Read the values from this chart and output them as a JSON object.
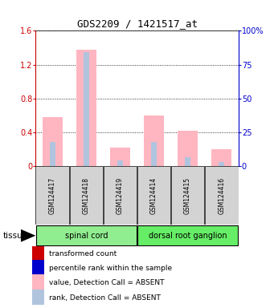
{
  "title": "GDS2209 / 1421517_at",
  "samples": [
    "GSM124417",
    "GSM124418",
    "GSM124419",
    "GSM124414",
    "GSM124415",
    "GSM124416"
  ],
  "absent_value": [
    0.58,
    1.38,
    0.22,
    0.6,
    0.42,
    0.2
  ],
  "absent_rank_pct": [
    18.0,
    84.0,
    4.5,
    18.0,
    6.5,
    3.0
  ],
  "ylim_left": [
    0,
    1.6
  ],
  "ylim_right": [
    0,
    100
  ],
  "yticks_left": [
    0,
    0.4,
    0.8,
    1.2,
    1.6
  ],
  "ytick_labels_left": [
    "0",
    "0.4",
    "0.8",
    "1.2",
    "1.6"
  ],
  "yticks_right": [
    0,
    25,
    50,
    75,
    100
  ],
  "ytick_labels_right": [
    "0",
    "25",
    "50",
    "75",
    "100%"
  ],
  "left_axis_color": "#CC0000",
  "right_axis_color": "#0000CC",
  "absent_value_color": "#FFB6C1",
  "absent_rank_color": "#B0C4DE",
  "present_value_color": "#CC0000",
  "present_rank_color": "#0000CC",
  "sample_box_color": "#D3D3D3",
  "spinal_cord_color": "#90EE90",
  "dorsal_ganglion_color": "#66EE66",
  "tissue_label": "tissue",
  "group1_label": "spinal cord",
  "group2_label": "dorsal root ganglion",
  "legend_items": [
    {
      "label": "transformed count",
      "color": "#CC0000"
    },
    {
      "label": "percentile rank within the sample",
      "color": "#0000CC"
    },
    {
      "label": "value, Detection Call = ABSENT",
      "color": "#FFB6C1"
    },
    {
      "label": "rank, Detection Call = ABSENT",
      "color": "#B0C4DE"
    }
  ]
}
